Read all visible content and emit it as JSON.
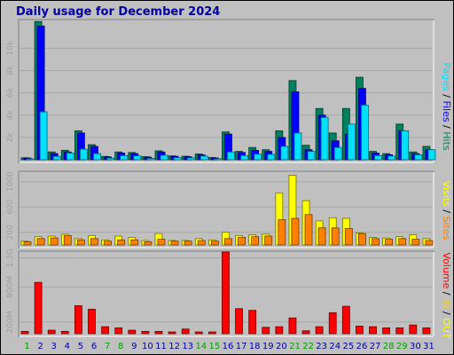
{
  "title": "Daily usage for December 2024",
  "colors": {
    "hits": "#00805c",
    "files": "#0000ff",
    "pages": "#00e0ff",
    "visits": "#ffff00",
    "sites": "#ff8000",
    "volume": "#ff0000",
    "in": "#ffd000",
    "out": "#ffff00",
    "weekday_label": "#0000a0",
    "weekend_label": "#00a000"
  },
  "side_labels": {
    "top": [
      {
        "text": "Pages",
        "color": "#00e0ff"
      },
      {
        "text": " / ",
        "color": "#000000"
      },
      {
        "text": "Files",
        "color": "#0000ff"
      },
      {
        "text": " / ",
        "color": "#000000"
      },
      {
        "text": "Hits",
        "color": "#00805c"
      }
    ],
    "middle": [
      {
        "text": "Visits",
        "color": "#ffff00"
      },
      {
        "text": " / ",
        "color": "#000000"
      },
      {
        "text": "Sites",
        "color": "#ff8000"
      }
    ],
    "bottom": [
      {
        "text": "Volume",
        "color": "#ff0000"
      },
      {
        "text": " / ",
        "color": "#000000"
      },
      {
        "text": "IN",
        "color": "#ffd000"
      },
      {
        "text": " / ",
        "color": "#000000"
      },
      {
        "text": "OUT",
        "color": "#ffff00"
      }
    ]
  },
  "chart_data": [
    {
      "type": "bar",
      "name": "hits-files-pages",
      "ylabels": [
        "2k",
        "4k",
        "6k",
        "8k",
        "10k"
      ],
      "yticks": [
        2000,
        4000,
        6000,
        8000,
        10000
      ],
      "ylim": [
        0,
        12500
      ],
      "categories": [
        "1",
        "2",
        "3",
        "4",
        "5",
        "6",
        "7",
        "8",
        "9",
        "10",
        "11",
        "12",
        "13",
        "14",
        "15",
        "16",
        "17",
        "18",
        "19",
        "20",
        "21",
        "22",
        "23",
        "24",
        "25",
        "26",
        "27",
        "28",
        "29",
        "30",
        "31"
      ],
      "series": [
        {
          "name": "Hits",
          "values": [
            180,
            12400,
            700,
            850,
            2600,
            1350,
            300,
            700,
            650,
            280,
            800,
            350,
            320,
            520,
            200,
            2500,
            750,
            1100,
            900,
            2600,
            7100,
            1300,
            4600,
            2400,
            4600,
            7400,
            750,
            550,
            3200,
            700,
            1200
          ]
        },
        {
          "name": "Files",
          "values": [
            150,
            12000,
            550,
            700,
            2400,
            1200,
            250,
            600,
            550,
            230,
            700,
            300,
            270,
            430,
            160,
            2300,
            650,
            850,
            750,
            2000,
            6100,
            900,
            4000,
            1700,
            2300,
            6400,
            600,
            450,
            2600,
            550,
            900
          ]
        },
        {
          "name": "Pages",
          "values": [
            80,
            4300,
            300,
            600,
            950,
            550,
            150,
            380,
            350,
            120,
            400,
            190,
            170,
            330,
            90,
            700,
            380,
            500,
            480,
            1200,
            2400,
            750,
            3800,
            1100,
            3200,
            4900,
            380,
            330,
            2600,
            450,
            900
          ]
        }
      ]
    },
    {
      "type": "bar",
      "name": "visits-sites",
      "ylabels": [
        "200",
        "600",
        "1000"
      ],
      "yticks": [
        200,
        600,
        1000
      ],
      "ylim": [
        0,
        1150
      ],
      "categories": [
        "1",
        "2",
        "3",
        "4",
        "5",
        "6",
        "7",
        "8",
        "9",
        "10",
        "11",
        "12",
        "13",
        "14",
        "15",
        "16",
        "17",
        "18",
        "19",
        "20",
        "21",
        "22",
        "23",
        "24",
        "25",
        "26",
        "27",
        "28",
        "29",
        "30",
        "31"
      ],
      "series": [
        {
          "name": "Visits",
          "values": [
            60,
            130,
            140,
            170,
            100,
            150,
            80,
            140,
            120,
            70,
            180,
            70,
            70,
            100,
            80,
            200,
            150,
            160,
            170,
            820,
            1100,
            700,
            380,
            430,
            420,
            190,
            120,
            110,
            130,
            160,
            100
          ]
        },
        {
          "name": "Sites",
          "values": [
            50,
            100,
            110,
            150,
            80,
            100,
            60,
            80,
            80,
            50,
            90,
            60,
            60,
            70,
            60,
            100,
            120,
            130,
            140,
            400,
            420,
            480,
            270,
            270,
            260,
            180,
            100,
            90,
            100,
            90,
            70
          ]
        }
      ]
    },
    {
      "type": "bar",
      "name": "volume",
      "ylabels": [
        "200M",
        "800M",
        "1.3G"
      ],
      "yticks": [
        200,
        800,
        1300
      ],
      "ylim": [
        0,
        1400
      ],
      "categories": [
        "1",
        "2",
        "3",
        "4",
        "5",
        "6",
        "7",
        "8",
        "9",
        "10",
        "11",
        "12",
        "13",
        "14",
        "15",
        "16",
        "17",
        "18",
        "19",
        "20",
        "21",
        "22",
        "23",
        "24",
        "25",
        "26",
        "27",
        "28",
        "29",
        "30",
        "31"
      ],
      "series": [
        {
          "name": "Volume",
          "values": [
            40,
            880,
            60,
            40,
            480,
            420,
            120,
            100,
            60,
            40,
            40,
            30,
            80,
            30,
            30,
            1400,
            430,
            400,
            110,
            120,
            270,
            50,
            120,
            360,
            470,
            130,
            120,
            100,
            100,
            150,
            100
          ]
        }
      ]
    }
  ]
}
